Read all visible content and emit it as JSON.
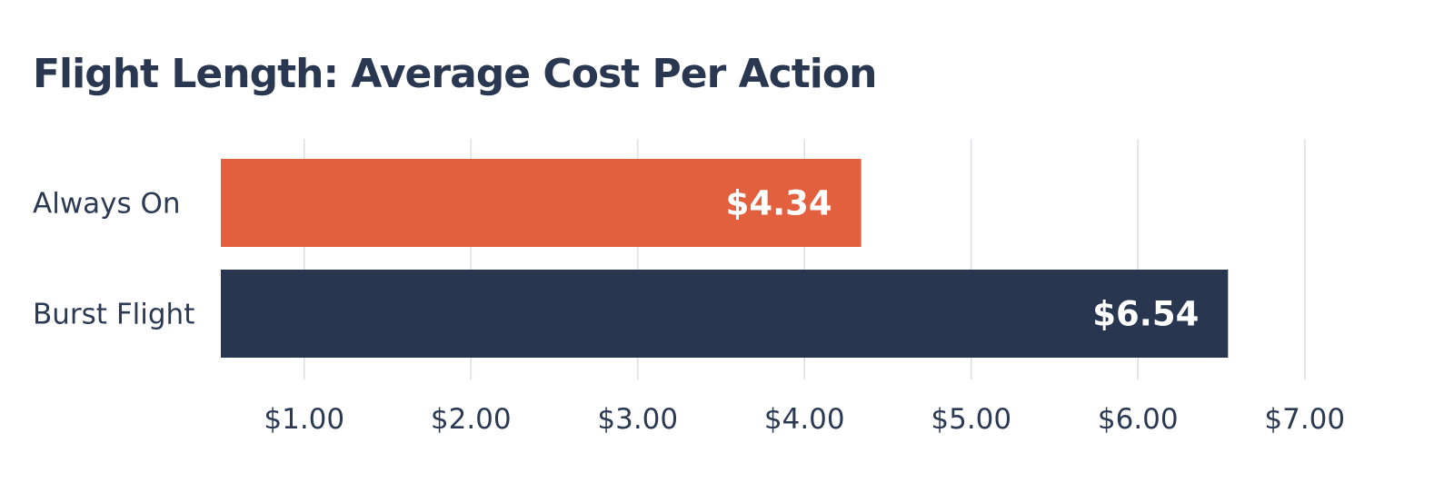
{
  "chart_data": {
    "type": "bar",
    "orientation": "horizontal",
    "title": "Flight Length: Average Cost Per Action",
    "categories": [
      "Always On",
      "Burst Flight"
    ],
    "values": [
      4.34,
      6.54
    ],
    "data_labels": [
      "$4.34",
      "$6.54"
    ],
    "bar_colors": [
      "#e3603e",
      "#28374f"
    ],
    "xlim": [
      0.5,
      7.0
    ],
    "x_ticks": [
      1,
      2,
      3,
      4,
      5,
      6,
      7
    ],
    "x_tick_labels": [
      "$1.00",
      "$2.00",
      "$3.00",
      "$4.00",
      "$5.00",
      "$6.00",
      "$7.00"
    ],
    "xlabel": "",
    "ylabel": "",
    "grid": "vertical",
    "legend": "none"
  }
}
